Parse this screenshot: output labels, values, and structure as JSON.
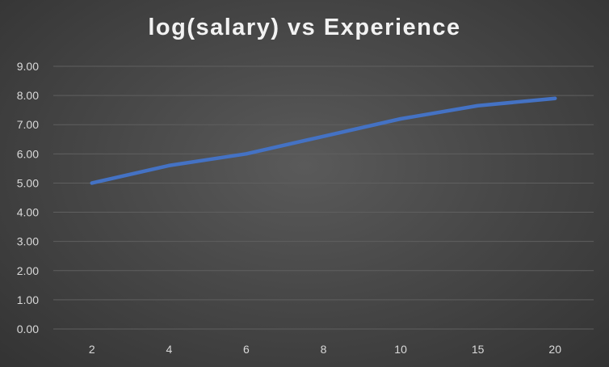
{
  "chart_data": {
    "type": "line",
    "title": "log(salary) vs Experience",
    "xlabel": "",
    "ylabel": "",
    "categories": [
      "2",
      "4",
      "6",
      "8",
      "10",
      "15",
      "20"
    ],
    "series": [
      {
        "values": [
          5.0,
          5.6,
          6.0,
          6.6,
          7.2,
          7.65,
          7.9
        ]
      }
    ],
    "ylim": [
      0,
      9
    ],
    "y_ticks": [
      "0.00",
      "1.00",
      "2.00",
      "3.00",
      "4.00",
      "5.00",
      "6.00",
      "7.00",
      "8.00",
      "9.00"
    ],
    "grid": true,
    "legend": "none",
    "colors": {
      "line": "#4472c4",
      "grid": "#5f5f5f",
      "background": "#404040",
      "text": "#d9d9d9"
    }
  }
}
